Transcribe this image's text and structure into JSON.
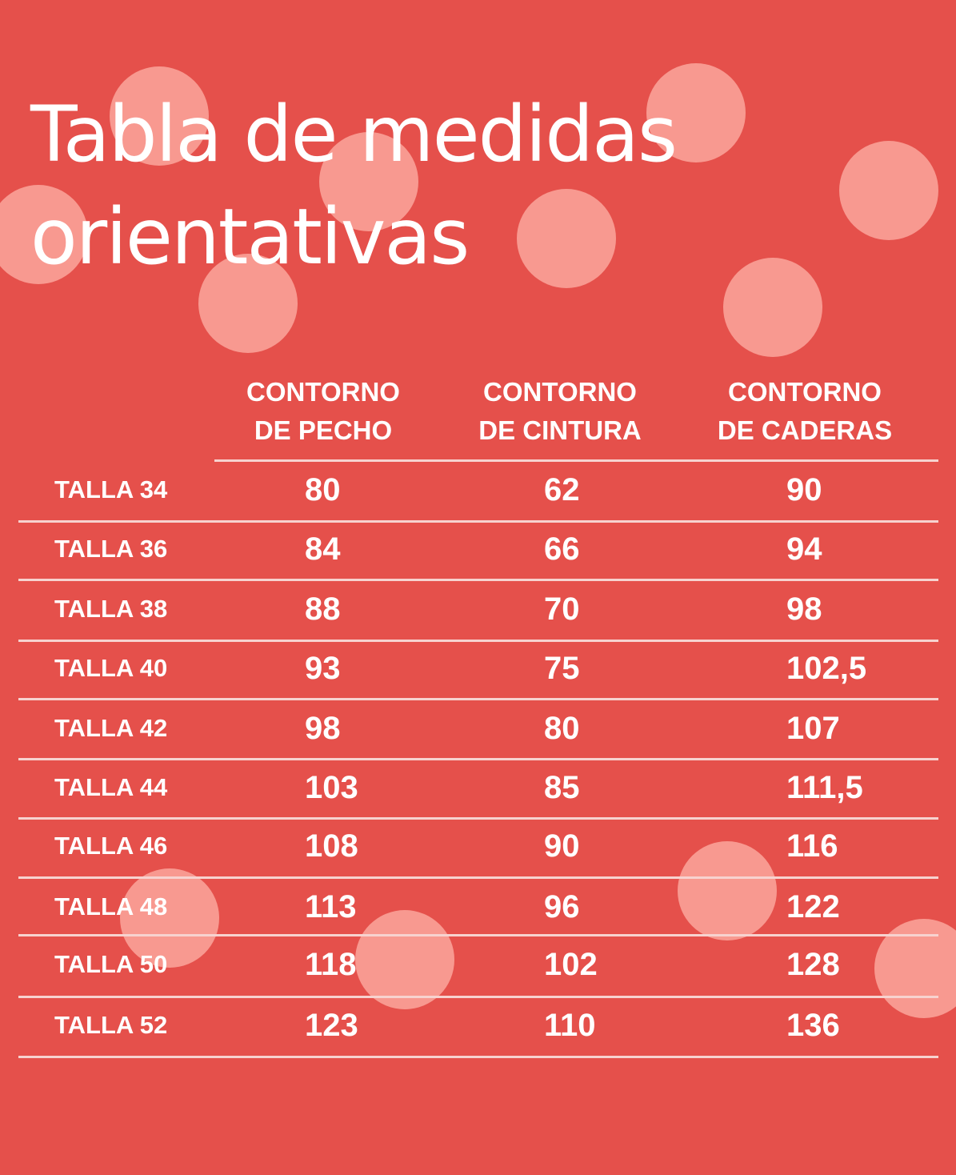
{
  "title": {
    "line1": "Tabla de medidas",
    "line2": "orientativas"
  },
  "headers": [
    {
      "line1": "CONTORNO",
      "line2": "DE PECHO"
    },
    {
      "line1": "CONTORNO",
      "line2": "DE CINTURA"
    },
    {
      "line1": "CONTORNO",
      "line2": "DE CADERAS"
    }
  ],
  "rows": [
    {
      "talla": "TALLA 34",
      "pecho": "80",
      "cintura": "62",
      "caderas": "90"
    },
    {
      "talla": "TALLA 36",
      "pecho": "84",
      "cintura": "66",
      "caderas": "94"
    },
    {
      "talla": "TALLA 38",
      "pecho": "88",
      "cintura": "70",
      "caderas": "98"
    },
    {
      "talla": "TALLA 40",
      "pecho": "93",
      "cintura": "75",
      "caderas": "102,5"
    },
    {
      "talla": "TALLA 42",
      "pecho": "98",
      "cintura": "80",
      "caderas": "107"
    },
    {
      "talla": "TALLA 44",
      "pecho": "103",
      "cintura": "85",
      "caderas": "111,5"
    },
    {
      "talla": "TALLA 46",
      "pecho": "108",
      "cintura": "90",
      "caderas": "116"
    },
    {
      "talla": "TALLA 48",
      "pecho": "113",
      "cintura": "96",
      "caderas": "122"
    },
    {
      "talla": "TALLA 50",
      "pecho": "118",
      "cintura": "102",
      "caderas": "128"
    },
    {
      "talla": "TALLA 52",
      "pecho": "123",
      "cintura": "110",
      "caderas": "136"
    }
  ],
  "colors": {
    "background": "#e5504b",
    "dots": "#ffb6aa",
    "text": "#ffffff",
    "rules": "#f7d2cf"
  }
}
